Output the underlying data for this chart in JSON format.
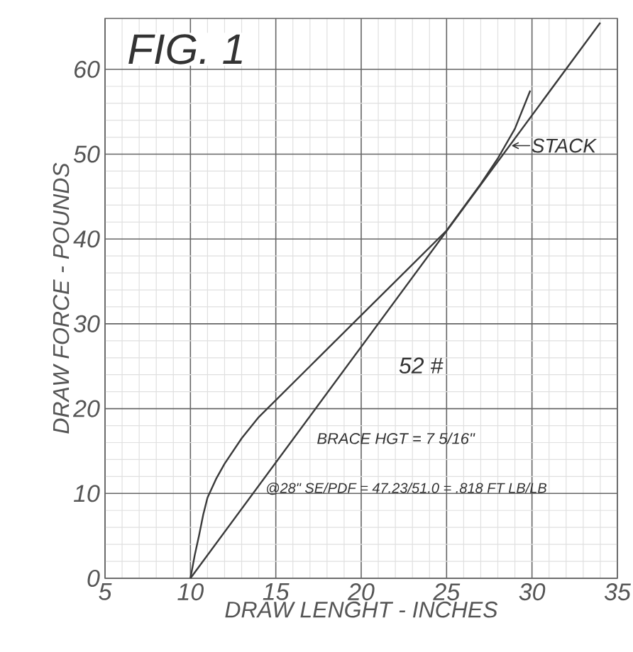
{
  "chart_data": {
    "type": "line",
    "title": "FIG. 1",
    "xlabel": "DRAW LENGHT - INCHES",
    "ylabel": "DRAW FORCE - POUNDS",
    "xlim": [
      5,
      35
    ],
    "ylim": [
      0,
      66
    ],
    "xticks": [
      5,
      10,
      15,
      20,
      25,
      30,
      35
    ],
    "yticks": [
      0,
      10,
      20,
      30,
      40,
      50,
      60
    ],
    "grid": true,
    "marker": "none",
    "line_style": "solid",
    "series": [
      {
        "color": "#3a3a3a",
        "x": [
          10,
          10.25,
          10.5,
          10.75,
          11,
          11.5,
          12,
          13,
          14,
          15,
          17,
          20,
          22,
          25,
          27,
          28,
          29,
          29.9
        ],
        "values": [
          0,
          2.7,
          5,
          7.5,
          9.5,
          11.7,
          13.5,
          16.5,
          19,
          21,
          25,
          31,
          35,
          41,
          46.5,
          49.5,
          53,
          57.5
        ]
      },
      {
        "color": "#3a3a3a",
        "x": [
          10,
          34
        ],
        "values": [
          0,
          65.5
        ]
      }
    ],
    "annotations": [
      {
        "text": "STACK",
        "x": 28.7,
        "y": 51
      },
      "52 #",
      "BRACE HGT = 7 5/16\"",
      "@28\" SE/PDF = 47.23/51.0 = .818 FT LB/LB"
    ]
  }
}
